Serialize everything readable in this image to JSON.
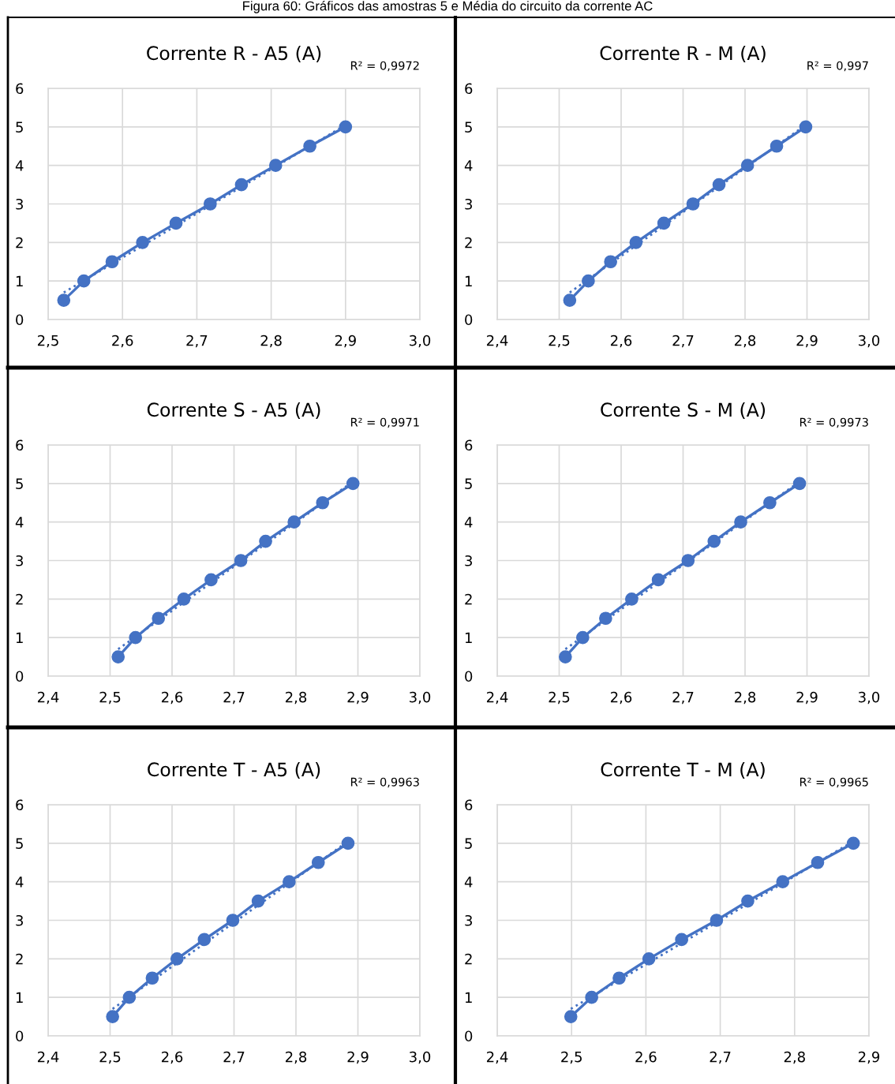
{
  "chart_data": [
    {
      "type": "line",
      "title": "Corrente R - A5 (A)",
      "annotations": [
        "R² = 0,9972",
        "Figura 60: Gráficos das amostras 5 e Média do circuito da corrente AC"
      ],
      "marker": "circle",
      "grid": true,
      "xlim": [
        2.5,
        3.0
      ],
      "xticks": [
        {
          "value": 2.5,
          "label": "2,5"
        },
        {
          "value": 2.6,
          "label": "2,6"
        },
        {
          "value": 2.7,
          "label": "2,7"
        },
        {
          "value": 2.8,
          "label": "2,8"
        },
        {
          "value": 2.9,
          "label": "2,9"
        },
        {
          "value": 3.0,
          "label": "3,0"
        }
      ],
      "ylim": [
        0,
        6
      ],
      "yticks": [
        0,
        1,
        2,
        3,
        4,
        5,
        6
      ],
      "series": [
        {
          "color": "#4472c4",
          "x": [
            2.521,
            2.548,
            2.586,
            2.627,
            2.672,
            2.718,
            2.76,
            2.806,
            2.852,
            2.9
          ],
          "values": [
            0.5,
            1,
            1.5,
            2,
            2.5,
            3,
            3.5,
            4,
            4.5,
            5
          ]
        },
        {
          "type": "line",
          "color": "#4472c4",
          "marker": "none",
          "line_style": "dotted",
          "x": [
            2.521,
            2.9
          ],
          "values": [
            0.7,
            5.05
          ]
        }
      ]
    },
    {
      "type": "line",
      "title": "Corrente R - M (A)",
      "annotations": [
        "R² = 0,997"
      ],
      "marker": "circle",
      "grid": true,
      "xlim": [
        2.4,
        3.0
      ],
      "xticks": [
        {
          "value": 2.4,
          "label": "2,4"
        },
        {
          "value": 2.5,
          "label": "2,5"
        },
        {
          "value": 2.6,
          "label": "2,6"
        },
        {
          "value": 2.7,
          "label": "2,7"
        },
        {
          "value": 2.8,
          "label": "2,8"
        },
        {
          "value": 2.9,
          "label": "2,9"
        },
        {
          "value": 3.0,
          "label": "3,0"
        }
      ],
      "ylim": [
        0,
        6
      ],
      "yticks": [
        0,
        1,
        2,
        3,
        4,
        5,
        6
      ],
      "series": [
        {
          "color": "#4472c4",
          "x": [
            2.517,
            2.547,
            2.583,
            2.624,
            2.669,
            2.716,
            2.758,
            2.804,
            2.851,
            2.898
          ],
          "values": [
            0.5,
            1,
            1.5,
            2,
            2.5,
            3,
            3.5,
            4,
            4.5,
            5
          ]
        },
        {
          "type": "line",
          "color": "#4472c4",
          "marker": "none",
          "line_style": "dotted",
          "x": [
            2.517,
            2.898
          ],
          "values": [
            0.7,
            5.05
          ]
        }
      ]
    },
    {
      "type": "line",
      "title": "Corrente S - A5 (A)",
      "annotations": [
        "R² = 0,9971"
      ],
      "marker": "circle",
      "grid": true,
      "xlim": [
        2.4,
        3.0
      ],
      "xticks": [
        {
          "value": 2.4,
          "label": "2,4"
        },
        {
          "value": 2.5,
          "label": "2,5"
        },
        {
          "value": 2.6,
          "label": "2,6"
        },
        {
          "value": 2.7,
          "label": "2,7"
        },
        {
          "value": 2.8,
          "label": "2,8"
        },
        {
          "value": 2.9,
          "label": "2,9"
        },
        {
          "value": 3.0,
          "label": "3,0"
        }
      ],
      "ylim": [
        0,
        6
      ],
      "yticks": [
        0,
        1,
        2,
        3,
        4,
        5,
        6
      ],
      "series": [
        {
          "color": "#4472c4",
          "x": [
            2.513,
            2.541,
            2.578,
            2.619,
            2.663,
            2.711,
            2.751,
            2.797,
            2.843,
            2.892
          ],
          "values": [
            0.5,
            1,
            1.5,
            2,
            2.5,
            3,
            3.5,
            4,
            4.5,
            5
          ]
        },
        {
          "type": "line",
          "color": "#4472c4",
          "marker": "none",
          "line_style": "dotted",
          "x": [
            2.513,
            2.892
          ],
          "values": [
            0.7,
            5.05
          ]
        }
      ]
    },
    {
      "type": "line",
      "title": "Corrente S - M (A)",
      "annotations": [
        "R² = 0,9973"
      ],
      "marker": "circle",
      "grid": true,
      "xlim": [
        2.4,
        3.0
      ],
      "xticks": [
        {
          "value": 2.4,
          "label": "2,4"
        },
        {
          "value": 2.5,
          "label": "2,5"
        },
        {
          "value": 2.6,
          "label": "2,6"
        },
        {
          "value": 2.7,
          "label": "2,7"
        },
        {
          "value": 2.8,
          "label": "2,8"
        },
        {
          "value": 2.9,
          "label": "2,9"
        },
        {
          "value": 3.0,
          "label": "3,0"
        }
      ],
      "ylim": [
        0,
        6
      ],
      "yticks": [
        0,
        1,
        2,
        3,
        4,
        5,
        6
      ],
      "series": [
        {
          "color": "#4472c4",
          "x": [
            2.51,
            2.538,
            2.575,
            2.617,
            2.66,
            2.708,
            2.75,
            2.793,
            2.84,
            2.888
          ],
          "values": [
            0.5,
            1,
            1.5,
            2,
            2.5,
            3,
            3.5,
            4,
            4.5,
            5
          ]
        },
        {
          "type": "line",
          "color": "#4472c4",
          "marker": "none",
          "line_style": "dotted",
          "x": [
            2.51,
            2.888
          ],
          "values": [
            0.7,
            5.05
          ]
        }
      ]
    },
    {
      "type": "line",
      "title": "Corrente T - A5 (A)",
      "annotations": [
        "R² = 0,9963"
      ],
      "marker": "circle",
      "grid": true,
      "xlim": [
        2.4,
        3.0
      ],
      "xticks": [
        {
          "value": 2.4,
          "label": "2,4"
        },
        {
          "value": 2.5,
          "label": "2,5"
        },
        {
          "value": 2.6,
          "label": "2,6"
        },
        {
          "value": 2.7,
          "label": "2,7"
        },
        {
          "value": 2.8,
          "label": "2,8"
        },
        {
          "value": 2.9,
          "label": "2,9"
        },
        {
          "value": 3.0,
          "label": "3,0"
        }
      ],
      "ylim": [
        0,
        6
      ],
      "yticks": [
        0,
        1,
        2,
        3,
        4,
        5,
        6
      ],
      "series": [
        {
          "color": "#4472c4",
          "x": [
            2.504,
            2.531,
            2.568,
            2.608,
            2.652,
            2.698,
            2.739,
            2.789,
            2.836,
            2.884
          ],
          "values": [
            0.5,
            1,
            1.5,
            2,
            2.5,
            3,
            3.5,
            4,
            4.5,
            5
          ]
        },
        {
          "type": "line",
          "color": "#4472c4",
          "marker": "none",
          "line_style": "dotted",
          "x": [
            2.504,
            2.884
          ],
          "values": [
            0.7,
            5.05
          ]
        }
      ]
    },
    {
      "type": "line",
      "title": "Corrente T - M (A)",
      "annotations": [
        "R² = 0,9965"
      ],
      "marker": "circle",
      "grid": true,
      "xlim": [
        2.4,
        2.9
      ],
      "xticks": [
        {
          "value": 2.4,
          "label": "2,4"
        },
        {
          "value": 2.5,
          "label": "2,5"
        },
        {
          "value": 2.6,
          "label": "2,6"
        },
        {
          "value": 2.7,
          "label": "2,7"
        },
        {
          "value": 2.8,
          "label": "2,8"
        },
        {
          "value": 2.9,
          "label": "2,9"
        }
      ],
      "ylim": [
        0,
        6
      ],
      "yticks": [
        0,
        1,
        2,
        3,
        4,
        5,
        6
      ],
      "series": [
        {
          "color": "#4472c4",
          "x": [
            2.499,
            2.527,
            2.564,
            2.604,
            2.648,
            2.695,
            2.737,
            2.784,
            2.831,
            2.879
          ],
          "values": [
            0.5,
            1,
            1.5,
            2,
            2.5,
            3,
            3.5,
            4,
            4.5,
            5
          ]
        },
        {
          "type": "line",
          "color": "#4472c4",
          "marker": "none",
          "line_style": "dotted",
          "x": [
            2.499,
            2.879
          ],
          "values": [
            0.7,
            5.05
          ]
        }
      ]
    }
  ]
}
